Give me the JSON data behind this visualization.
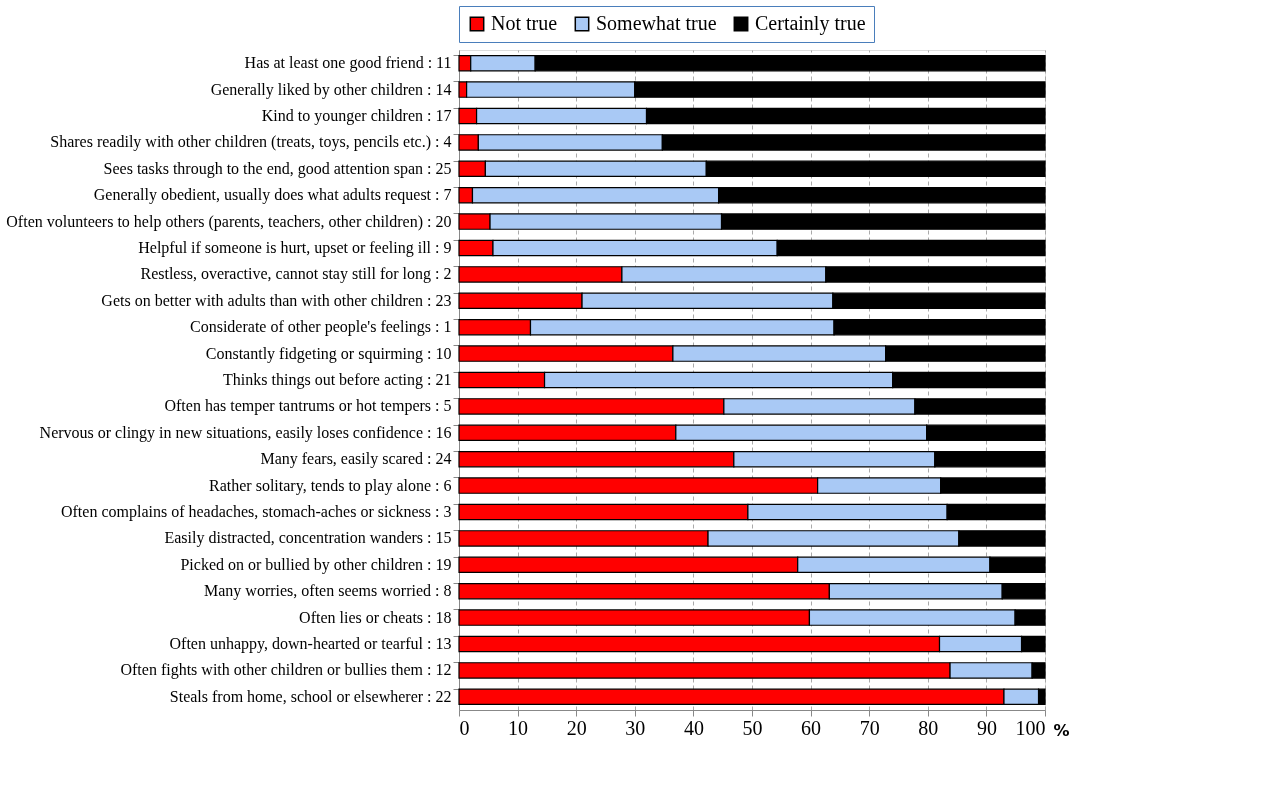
{
  "chart_data": {
    "type": "bar",
    "orientation": "horizontal",
    "stacked": true,
    "xlabel": "%",
    "categories": [
      "Has at least one good friend : 11",
      "Generally liked by other children : 14",
      "Kind to younger children : 17",
      "Shares readily with other children (treats, toys, pencils etc.) : 4",
      "Sees tasks through to the end, good attention span : 25",
      "Generally obedient, usually does what adults request : 7",
      "Often volunteers to help others (parents, teachers, other children) : 20",
      "Helpful if someone is hurt, upset or feeling ill : 9",
      "Restless, overactive, cannot stay still for long : 2",
      "Gets on better with adults than with other children : 23",
      "Considerate of other people's feelings : 1",
      "Constantly fidgeting or squirming : 10",
      "Thinks things out before acting : 21",
      "Often has temper tantrums or hot tempers : 5",
      "Nervous or clingy in new situations, easily loses confidence : 16",
      "Many fears, easily scared : 24",
      "Rather solitary, tends to play alone : 6",
      "Often complains of headaches, stomach-aches or sickness : 3",
      "Easily distracted, concentration wanders : 15",
      "Picked on or bullied by other children : 19",
      "Many worries, often seems worried : 8",
      "Often lies or cheats : 18",
      "Often unhappy, down-hearted or tearful : 13",
      "Often fights with other children or bullies them : 12",
      "Steals from home, school or elsewherer : 22"
    ],
    "series": [
      {
        "name": "Not true",
        "color": "#ff0000",
        "values": [
          2,
          1.3,
          3,
          3.3,
          4.5,
          2.3,
          5.3,
          5.8,
          27.8,
          21,
          12.2,
          36.5,
          14.6,
          45.2,
          37,
          46.9,
          61.2,
          49.3,
          42.5,
          57.8,
          63.2,
          59.8,
          82,
          83.8,
          93
        ]
      },
      {
        "name": "Somewhat true",
        "color": "#a9c9f5",
        "values": [
          11,
          28.7,
          29,
          31.4,
          37.7,
          42,
          39.5,
          48.5,
          34.8,
          42.8,
          51.8,
          36.3,
          59.4,
          32.6,
          42.8,
          34.3,
          21,
          34,
          42.8,
          32.8,
          29.5,
          35.1,
          14,
          14,
          5.9
        ]
      },
      {
        "name": "Certainly true",
        "color": "#000000",
        "values": [
          87,
          70,
          68,
          65.3,
          57.8,
          55.7,
          55.2,
          45.7,
          37.4,
          36.2,
          36,
          27.2,
          26,
          22.2,
          20.2,
          18.8,
          17.8,
          16.7,
          14.7,
          9.4,
          7.3,
          5.1,
          4,
          2.2,
          1.1
        ]
      }
    ],
    "xlim": [
      0,
      100
    ],
    "xticks": [
      0,
      10,
      20,
      30,
      40,
      50,
      60,
      70,
      80,
      90,
      100
    ],
    "grid": "x",
    "legend": "top"
  }
}
